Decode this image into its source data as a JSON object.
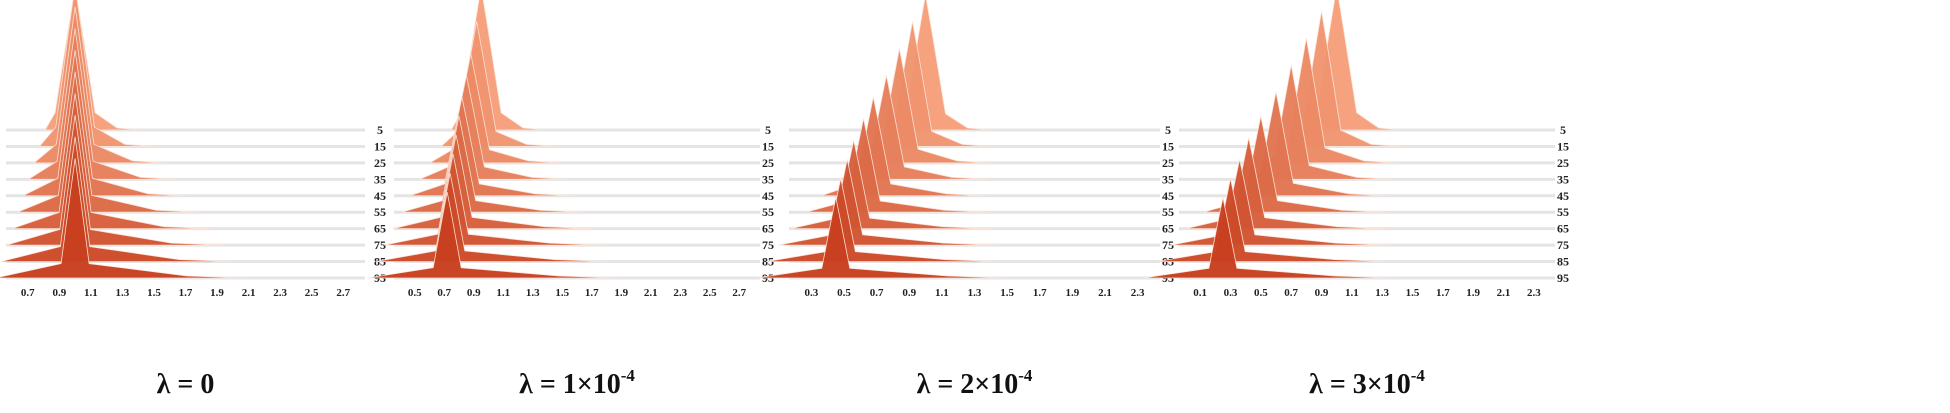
{
  "chart_data": [
    {
      "type": "area",
      "title_prefix": "λ = ",
      "title_main": "0",
      "title_sup": "",
      "x_ticks": [
        "0.7",
        "0.9",
        "1.1",
        "1.3",
        "1.5",
        "1.7",
        "1.9",
        "2.1",
        "2.3",
        "2.5",
        "2.7"
      ],
      "xlim": [
        0.6,
        2.8
      ],
      "y_ticks": [
        "5",
        "15",
        "25",
        "35",
        "45",
        "55",
        "65",
        "75",
        "85",
        "95"
      ],
      "ylim": [
        0,
        100
      ],
      "series": [
        {
          "epoch": 5,
          "peak_x": 1.0,
          "peak_height": 0.55
        },
        {
          "epoch": 15,
          "peak_x": 1.0,
          "peak_height": 0.62
        },
        {
          "epoch": 25,
          "peak_x": 1.0,
          "peak_height": 0.6
        },
        {
          "epoch": 35,
          "peak_x": 1.0,
          "peak_height": 0.58
        },
        {
          "epoch": 45,
          "peak_x": 1.0,
          "peak_height": 0.56
        },
        {
          "epoch": 55,
          "peak_x": 1.0,
          "peak_height": 0.54
        },
        {
          "epoch": 65,
          "peak_x": 1.0,
          "peak_height": 0.52
        },
        {
          "epoch": 75,
          "peak_x": 1.0,
          "peak_height": 0.5
        },
        {
          "epoch": 85,
          "peak_x": 1.0,
          "peak_height": 0.48
        },
        {
          "epoch": 95,
          "peak_x": 1.0,
          "peak_height": 0.46
        }
      ]
    },
    {
      "type": "area",
      "title_prefix": "λ = ",
      "title_main": "1×10",
      "title_sup": "-4",
      "x_ticks": [
        "0.5",
        "0.7",
        "0.9",
        "1.1",
        "1.3",
        "1.5",
        "1.7",
        "1.9",
        "2.1",
        "2.3",
        "2.5",
        "2.7"
      ],
      "xlim": [
        0.4,
        2.8
      ],
      "y_ticks": [
        "5",
        "15",
        "25",
        "35",
        "45",
        "55",
        "65",
        "75",
        "85",
        "95"
      ],
      "ylim": [
        0,
        100
      ],
      "series": [
        {
          "epoch": 5,
          "peak_x": 0.95,
          "peak_height": 0.55
        },
        {
          "epoch": 15,
          "peak_x": 0.92,
          "peak_height": 0.48
        },
        {
          "epoch": 25,
          "peak_x": 0.88,
          "peak_height": 0.42
        },
        {
          "epoch": 35,
          "peak_x": 0.85,
          "peak_height": 0.4
        },
        {
          "epoch": 45,
          "peak_x": 0.82,
          "peak_height": 0.38
        },
        {
          "epoch": 55,
          "peak_x": 0.8,
          "peak_height": 0.37
        },
        {
          "epoch": 65,
          "peak_x": 0.78,
          "peak_height": 0.36
        },
        {
          "epoch": 75,
          "peak_x": 0.76,
          "peak_height": 0.35
        },
        {
          "epoch": 85,
          "peak_x": 0.74,
          "peak_height": 0.34
        },
        {
          "epoch": 95,
          "peak_x": 0.72,
          "peak_height": 0.33
        }
      ]
    },
    {
      "type": "area",
      "title_prefix": "λ = ",
      "title_main": "2×10",
      "title_sup": "-4",
      "x_ticks": [
        "0.3",
        "0.5",
        "0.7",
        "0.9",
        "1.1",
        "1.3",
        "1.5",
        "1.7",
        "1.9",
        "2.1",
        "2.3"
      ],
      "xlim": [
        0.2,
        2.4
      ],
      "y_ticks": [
        "5",
        "15",
        "25",
        "35",
        "45",
        "55",
        "65",
        "75",
        "85",
        "95"
      ],
      "ylim": [
        0,
        100
      ],
      "series": [
        {
          "epoch": 5,
          "peak_x": 1.0,
          "peak_height": 0.52
        },
        {
          "epoch": 15,
          "peak_x": 0.92,
          "peak_height": 0.48
        },
        {
          "epoch": 25,
          "peak_x": 0.84,
          "peak_height": 0.44
        },
        {
          "epoch": 35,
          "peak_x": 0.76,
          "peak_height": 0.4
        },
        {
          "epoch": 45,
          "peak_x": 0.68,
          "peak_height": 0.38
        },
        {
          "epoch": 55,
          "peak_x": 0.62,
          "peak_height": 0.36
        },
        {
          "epoch": 65,
          "peak_x": 0.56,
          "peak_height": 0.34
        },
        {
          "epoch": 75,
          "peak_x": 0.52,
          "peak_height": 0.33
        },
        {
          "epoch": 85,
          "peak_x": 0.48,
          "peak_height": 0.32
        },
        {
          "epoch": 95,
          "peak_x": 0.45,
          "peak_height": 0.31
        }
      ]
    },
    {
      "type": "area",
      "title_prefix": "λ = ",
      "title_main": "3×10",
      "title_sup": "-4",
      "x_ticks": [
        "0.1",
        "0.3",
        "0.5",
        "0.7",
        "0.9",
        "1.1",
        "1.3",
        "1.5",
        "1.7",
        "1.9",
        "2.1",
        "2.3"
      ],
      "xlim": [
        0.0,
        2.4
      ],
      "y_ticks": [
        "5",
        "15",
        "25",
        "35",
        "45",
        "55",
        "65",
        "75",
        "85",
        "95"
      ],
      "ylim": [
        0,
        100
      ],
      "series": [
        {
          "epoch": 5,
          "peak_x": 1.0,
          "peak_height": 0.55
        },
        {
          "epoch": 15,
          "peak_x": 0.9,
          "peak_height": 0.52
        },
        {
          "epoch": 25,
          "peak_x": 0.8,
          "peak_height": 0.48
        },
        {
          "epoch": 35,
          "peak_x": 0.7,
          "peak_height": 0.44
        },
        {
          "epoch": 45,
          "peak_x": 0.6,
          "peak_height": 0.4
        },
        {
          "epoch": 55,
          "peak_x": 0.5,
          "peak_height": 0.37
        },
        {
          "epoch": 65,
          "peak_x": 0.42,
          "peak_height": 0.35
        },
        {
          "epoch": 75,
          "peak_x": 0.36,
          "peak_height": 0.33
        },
        {
          "epoch": 85,
          "peak_x": 0.3,
          "peak_height": 0.32
        },
        {
          "epoch": 95,
          "peak_x": 0.25,
          "peak_height": 0.31
        }
      ]
    }
  ],
  "colors": {
    "front": "#c8401f",
    "back": "#f6a07a",
    "edge": "#fbe3d7",
    "rail": "#e4e4e4"
  }
}
